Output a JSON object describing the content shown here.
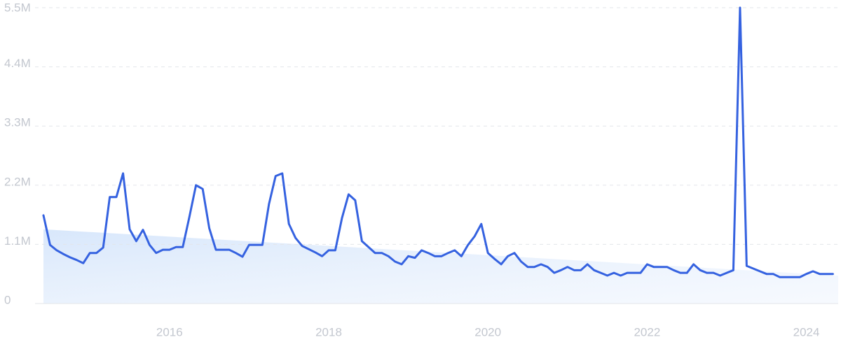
{
  "chart_data": {
    "type": "line",
    "x": [
      2014.417,
      2014.5,
      2014.583,
      2014.667,
      2014.75,
      2014.833,
      2014.917,
      2015.0,
      2015.083,
      2015.167,
      2015.25,
      2015.333,
      2015.417,
      2015.5,
      2015.583,
      2015.667,
      2015.75,
      2015.833,
      2015.917,
      2016.0,
      2016.083,
      2016.167,
      2016.25,
      2016.333,
      2016.417,
      2016.5,
      2016.583,
      2016.667,
      2016.75,
      2016.833,
      2016.917,
      2017.0,
      2017.083,
      2017.167,
      2017.25,
      2017.333,
      2017.417,
      2017.5,
      2017.583,
      2017.667,
      2017.75,
      2017.833,
      2017.917,
      2018.0,
      2018.083,
      2018.167,
      2018.25,
      2018.333,
      2018.417,
      2018.5,
      2018.583,
      2018.667,
      2018.75,
      2018.833,
      2018.917,
      2019.0,
      2019.083,
      2019.167,
      2019.25,
      2019.333,
      2019.417,
      2019.5,
      2019.583,
      2019.667,
      2019.75,
      2019.833,
      2019.917,
      2020.0,
      2020.083,
      2020.167,
      2020.25,
      2020.333,
      2020.417,
      2020.5,
      2020.583,
      2020.667,
      2020.75,
      2020.833,
      2020.917,
      2021.0,
      2021.083,
      2021.167,
      2021.25,
      2021.333,
      2021.417,
      2021.5,
      2021.583,
      2021.667,
      2021.75,
      2021.833,
      2021.917,
      2022.0,
      2022.083,
      2022.167,
      2022.25,
      2022.333,
      2022.417,
      2022.5,
      2022.583,
      2022.667,
      2022.75,
      2022.833,
      2022.917,
      2023.0,
      2023.083,
      2023.167,
      2023.25,
      2023.333,
      2023.417,
      2023.5,
      2023.583,
      2023.667,
      2023.75,
      2023.833,
      2023.917,
      2024.0,
      2024.083,
      2024.167,
      2024.25,
      2024.333
    ],
    "series": [
      {
        "color": "#3562e0",
        "values": [
          1640000,
          1090000,
          990000,
          920000,
          860000,
          810000,
          750000,
          940000,
          940000,
          1040000,
          1980000,
          1980000,
          2420000,
          1380000,
          1160000,
          1370000,
          1090000,
          940000,
          1000000,
          1000000,
          1050000,
          1050000,
          1610000,
          2200000,
          2130000,
          1400000,
          1000000,
          1000000,
          1000000,
          940000,
          870000,
          1090000,
          1090000,
          1090000,
          1850000,
          2370000,
          2420000,
          1480000,
          1220000,
          1070000,
          1010000,
          950000,
          880000,
          990000,
          990000,
          1590000,
          2030000,
          1920000,
          1160000,
          1050000,
          940000,
          940000,
          880000,
          780000,
          730000,
          880000,
          850000,
          990000,
          940000,
          880000,
          880000,
          940000,
          990000,
          880000,
          1090000,
          1250000,
          1480000,
          940000,
          830000,
          730000,
          880000,
          940000,
          780000,
          680000,
          680000,
          730000,
          680000,
          570000,
          620000,
          680000,
          620000,
          620000,
          730000,
          620000,
          570000,
          520000,
          570000,
          520000,
          570000,
          570000,
          570000,
          730000,
          680000,
          680000,
          680000,
          620000,
          570000,
          570000,
          730000,
          620000,
          570000,
          570000,
          520000,
          570000,
          620000,
          5500000,
          700000,
          650000,
          600000,
          550000,
          550000,
          490000,
          490000,
          490000,
          490000,
          550000,
          600000,
          550000,
          550000,
          550000
        ]
      }
    ],
    "trend": [
      1380000,
      520000
    ],
    "xlim": [
      2014.417,
      2024.4
    ],
    "xticks": [
      2016,
      2018,
      2020,
      2022,
      2024
    ],
    "ylim": [
      0,
      5500000
    ],
    "yticks": [
      0,
      {
        "value": 1100000,
        "label": "1.1M"
      },
      {
        "value": 2200000,
        "label": "2.2M"
      },
      {
        "value": 3300000,
        "label": "3.3M"
      },
      {
        "value": 4400000,
        "label": "4.4M"
      },
      {
        "value": 5500000,
        "label": "5.5M"
      }
    ],
    "grid": true
  }
}
